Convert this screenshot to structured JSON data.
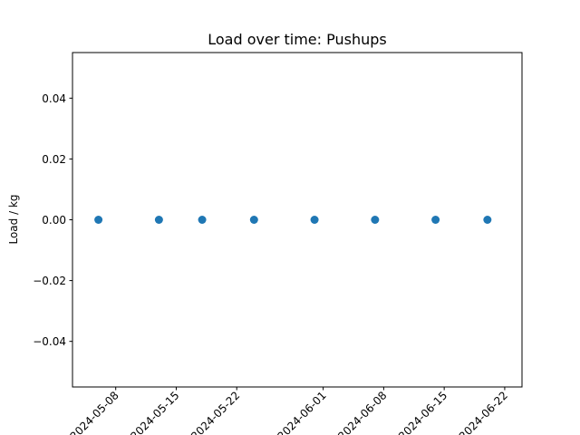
{
  "chart_data": {
    "type": "scatter",
    "title": "Load over time: Pushups",
    "xlabel": "",
    "ylabel": "Load / kg",
    "xlim": [
      "2024-05-03",
      "2024-06-24"
    ],
    "ylim": [
      -0.055,
      0.055
    ],
    "x_ticks": [
      "2024-05-08",
      "2024-05-15",
      "2024-05-22",
      "2024-06-01",
      "2024-06-08",
      "2024-06-15",
      "2024-06-22"
    ],
    "x_tick_labels": [
      "2024-05-08",
      "2024-05-15",
      "2024-05-22",
      "2024-06-01",
      "2024-06-08",
      "2024-06-15",
      "2024-06-22"
    ],
    "y_ticks": [
      0.04,
      0.02,
      0.0,
      -0.02,
      -0.04
    ],
    "y_tick_labels": [
      "0.04",
      "0.02",
      "0.00",
      "−0.02",
      "−0.04"
    ],
    "grid": false,
    "legend": false,
    "series": [
      {
        "color": "#1f77b4",
        "x": [
          "2024-05-06",
          "2024-05-13",
          "2024-05-18",
          "2024-05-24",
          "2024-05-31",
          "2024-06-07",
          "2024-06-14",
          "2024-06-20"
        ],
        "y": [
          0,
          0,
          0,
          0,
          0,
          0,
          0,
          0
        ]
      }
    ]
  }
}
